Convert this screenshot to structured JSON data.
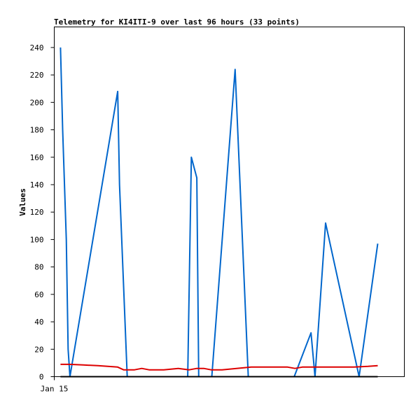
{
  "chart_data": {
    "type": "line",
    "title": "Telemetry for KI4ITI-9 over last 96 hours (33 points)",
    "xlabel": "",
    "ylabel": "Values",
    "xlim": [
      0,
      96
    ],
    "ylim": [
      0,
      255
    ],
    "y_ticks": [
      0,
      20,
      40,
      60,
      80,
      100,
      120,
      140,
      160,
      180,
      200,
      220,
      240
    ],
    "x_ticks": [
      {
        "x": 0,
        "label": "Jan 15"
      }
    ],
    "grid": false,
    "series": [
      {
        "color": "#0066cc",
        "points": [
          [
            1.7,
            240
          ],
          [
            2.3,
            180
          ],
          [
            2.8,
            140
          ],
          [
            3.3,
            100
          ],
          [
            3.8,
            20
          ],
          [
            4.3,
            0
          ],
          [
            17.4,
            208
          ],
          [
            17.9,
            140
          ],
          [
            20.0,
            0
          ],
          [
            36.6,
            0
          ],
          [
            37.6,
            160
          ],
          [
            39.1,
            145
          ],
          [
            39.6,
            0
          ],
          [
            43.2,
            0
          ],
          [
            49.6,
            224
          ],
          [
            53.2,
            0
          ],
          [
            65.8,
            0
          ],
          [
            70.4,
            32
          ],
          [
            71.5,
            0
          ],
          [
            74.4,
            112
          ],
          [
            83.6,
            0
          ],
          [
            88.7,
            97
          ]
        ]
      },
      {
        "color": "#dd0000",
        "points": [
          [
            1.7,
            9
          ],
          [
            4.3,
            9
          ],
          [
            8.0,
            8.5
          ],
          [
            12.0,
            8
          ],
          [
            17.4,
            7
          ],
          [
            19.0,
            5
          ],
          [
            22.0,
            5
          ],
          [
            24.0,
            6
          ],
          [
            26.0,
            5
          ],
          [
            30.0,
            5
          ],
          [
            34.0,
            6
          ],
          [
            37.0,
            5
          ],
          [
            39.1,
            6
          ],
          [
            41.0,
            6
          ],
          [
            43.0,
            5
          ],
          [
            46.0,
            5
          ],
          [
            50.0,
            6
          ],
          [
            54.0,
            7
          ],
          [
            60.0,
            7
          ],
          [
            64.0,
            7
          ],
          [
            66.0,
            6
          ],
          [
            68.0,
            7
          ],
          [
            72.0,
            7
          ],
          [
            78.0,
            7
          ],
          [
            82.0,
            7
          ],
          [
            86.0,
            7.5
          ],
          [
            88.7,
            8
          ]
        ]
      },
      {
        "color": "#000000",
        "points": [
          [
            1.7,
            0
          ],
          [
            88.7,
            0
          ]
        ]
      }
    ]
  }
}
